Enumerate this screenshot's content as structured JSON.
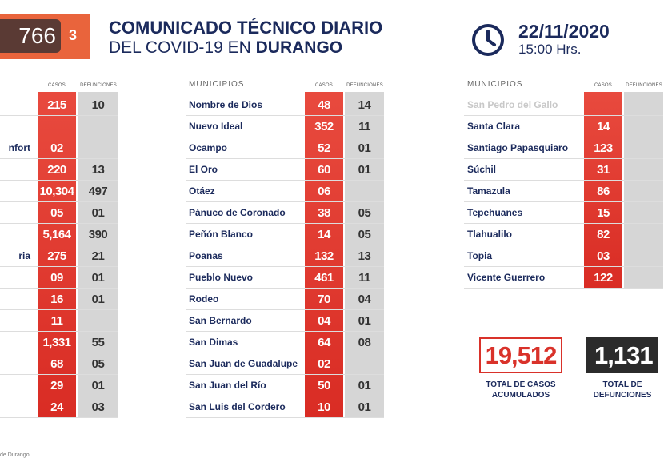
{
  "header": {
    "badge_number": "766",
    "badge_small": "3",
    "title": "COMUNICADO TÉCNICO DIARIO",
    "subtitle_prefix": "DEL COVID-19 EN",
    "subtitle_place": "DURANGO",
    "date": "22/11/2020",
    "time": "15:00 Hrs."
  },
  "labels": {
    "municipios": "MUNICIPIOS",
    "casos": "CASOS",
    "defunciones": "DEFUNCIONES"
  },
  "tables": [
    {
      "rows": [
        {
          "casos": "215",
          "defunciones": "10"
        },
        {},
        {
          "name": "nfort",
          "casos": "02"
        },
        {
          "casos": "220",
          "defunciones": "13"
        },
        {
          "casos": "10,304",
          "defunciones": "497"
        },
        {
          "casos": "05",
          "defunciones": "01"
        },
        {
          "casos": "5,164",
          "defunciones": "390"
        },
        {
          "name": "ria",
          "casos": "275",
          "defunciones": "21"
        },
        {
          "casos": "09",
          "defunciones": "01"
        },
        {
          "casos": "16",
          "defunciones": "01"
        },
        {
          "casos": "11"
        },
        {
          "casos": "1,331",
          "defunciones": "55"
        },
        {
          "casos": "68",
          "defunciones": "05"
        },
        {
          "casos": "29",
          "defunciones": "01"
        },
        {
          "casos": "24",
          "defunciones": "03"
        }
      ]
    },
    {
      "rows": [
        {
          "name": "Nombre de Dios",
          "casos": "48",
          "defunciones": "14"
        },
        {
          "name": "Nuevo Ideal",
          "casos": "352",
          "defunciones": "11"
        },
        {
          "name": "Ocampo",
          "casos": "52",
          "defunciones": "01"
        },
        {
          "name": "El Oro",
          "casos": "60",
          "defunciones": "01"
        },
        {
          "name": "Otáez",
          "casos": "06"
        },
        {
          "name": "Pánuco de Coronado",
          "casos": "38",
          "defunciones": "05"
        },
        {
          "name": "Peñón Blanco",
          "casos": "14",
          "defunciones": "05"
        },
        {
          "name": "Poanas",
          "casos": "132",
          "defunciones": "13"
        },
        {
          "name": "Pueblo Nuevo",
          "casos": "461",
          "defunciones": "11"
        },
        {
          "name": "Rodeo",
          "casos": "70",
          "defunciones": "04"
        },
        {
          "name": "San Bernardo",
          "casos": "04",
          "defunciones": "01"
        },
        {
          "name": "San Dimas",
          "casos": "64",
          "defunciones": "08"
        },
        {
          "name": "San Juan de Guadalupe",
          "casos": "02"
        },
        {
          "name": "San Juan del Río",
          "casos": "50",
          "defunciones": "01"
        },
        {
          "name": "San Luis del Cordero",
          "casos": "10",
          "defunciones": "01"
        }
      ]
    },
    {
      "rows": [
        {
          "name": "San Pedro del Gallo"
        },
        {
          "name": "Santa Clara",
          "casos": "14"
        },
        {
          "name": "Santiago Papasquiaro",
          "casos": "123"
        },
        {
          "name": "Súchil",
          "casos": "31"
        },
        {
          "name": "Tamazula",
          "casos": "86"
        },
        {
          "name": "Tepehuanes",
          "casos": "15"
        },
        {
          "name": "Tlahualilo",
          "casos": "82"
        },
        {
          "name": "Topia",
          "casos": "03"
        },
        {
          "name": "Vicente Guerrero",
          "casos": "122"
        }
      ]
    }
  ],
  "totals": {
    "cases": "19,512",
    "cases_label": "TOTAL DE CASOS ACUMULADOS",
    "deaths": "1,131",
    "deaths_label": "TOTAL DE DEFUNCIONES"
  },
  "footer": "de Durango."
}
